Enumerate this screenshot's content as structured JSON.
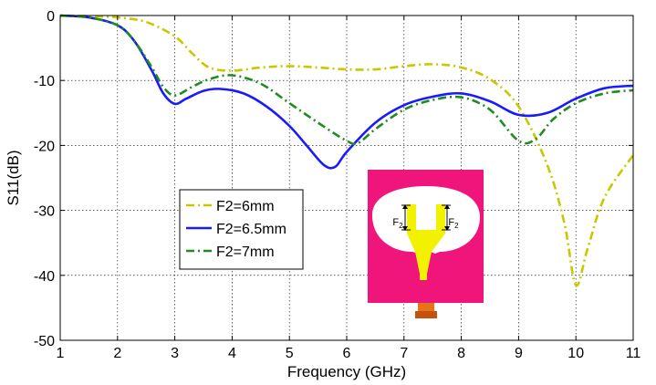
{
  "chart_data": {
    "type": "line",
    "xlabel": "Frequency (GHz)",
    "ylabel": "S11(dB)",
    "xlim": [
      1,
      11
    ],
    "ylim": [
      -50,
      0
    ],
    "xticks": [
      "1",
      "2",
      "3",
      "4",
      "5",
      "6",
      "7",
      "8",
      "9",
      "10",
      "11"
    ],
    "yticks": [
      "0",
      "-10",
      "-20",
      "-30",
      "-40",
      "-50"
    ],
    "grid": true,
    "legend_position": "center-left",
    "series": [
      {
        "name": "F2=6mm",
        "color": "#c8c800",
        "dash": "dash-dot",
        "x": [
          1,
          1.5,
          2,
          2.5,
          3,
          3.3,
          3.6,
          4,
          4.5,
          5,
          5.5,
          6,
          6.5,
          7,
          7.5,
          8,
          8.5,
          9,
          9.5,
          9.8,
          10,
          10.2,
          10.5,
          11
        ],
        "y": [
          0,
          -0.1,
          -0.3,
          -1.0,
          -3.2,
          -5.8,
          -8.0,
          -8.5,
          -8.0,
          -7.8,
          -8.0,
          -8.3,
          -8.3,
          -7.8,
          -7.5,
          -8.0,
          -9.8,
          -14.0,
          -23.0,
          -32.0,
          -41.5,
          -36.0,
          -28.0,
          -21.5
        ]
      },
      {
        "name": "F2=6.5mm",
        "color": "#1a1aff",
        "dash": "solid",
        "x": [
          1,
          1.5,
          2,
          2.3,
          2.6,
          2.8,
          3,
          3.2,
          3.5,
          3.8,
          4.2,
          4.6,
          5,
          5.3,
          5.6,
          5.8,
          6,
          6.5,
          7,
          7.5,
          8,
          8.5,
          9,
          9.5,
          10,
          10.5,
          11
        ],
        "y": [
          0,
          -0.3,
          -1.5,
          -4.0,
          -8.5,
          -12.0,
          -13.6,
          -12.8,
          -11.6,
          -11.3,
          -12.0,
          -14.0,
          -17.0,
          -20.0,
          -23.0,
          -23.3,
          -21.0,
          -16.5,
          -13.8,
          -12.5,
          -12.0,
          -13.2,
          -15.3,
          -15.0,
          -12.8,
          -11.2,
          -10.8
        ]
      },
      {
        "name": "F2=7mm",
        "color": "#1e8c1e",
        "dash": "dash-dot",
        "x": [
          1,
          1.5,
          2,
          2.3,
          2.6,
          2.8,
          3,
          3.3,
          3.6,
          4,
          4.5,
          5,
          5.5,
          6,
          6.2,
          6.5,
          7,
          7.5,
          8,
          8.5,
          9,
          9.3,
          9.6,
          10,
          10.5,
          11
        ],
        "y": [
          0,
          -0.3,
          -1.5,
          -4.0,
          -8.0,
          -11.0,
          -12.3,
          -11.0,
          -9.8,
          -9.2,
          -10.5,
          -13.5,
          -16.5,
          -19.3,
          -19.6,
          -17.5,
          -14.5,
          -13.0,
          -12.6,
          -14.5,
          -19.3,
          -19.0,
          -16.0,
          -13.5,
          -12.0,
          -11.5
        ]
      }
    ]
  }
}
